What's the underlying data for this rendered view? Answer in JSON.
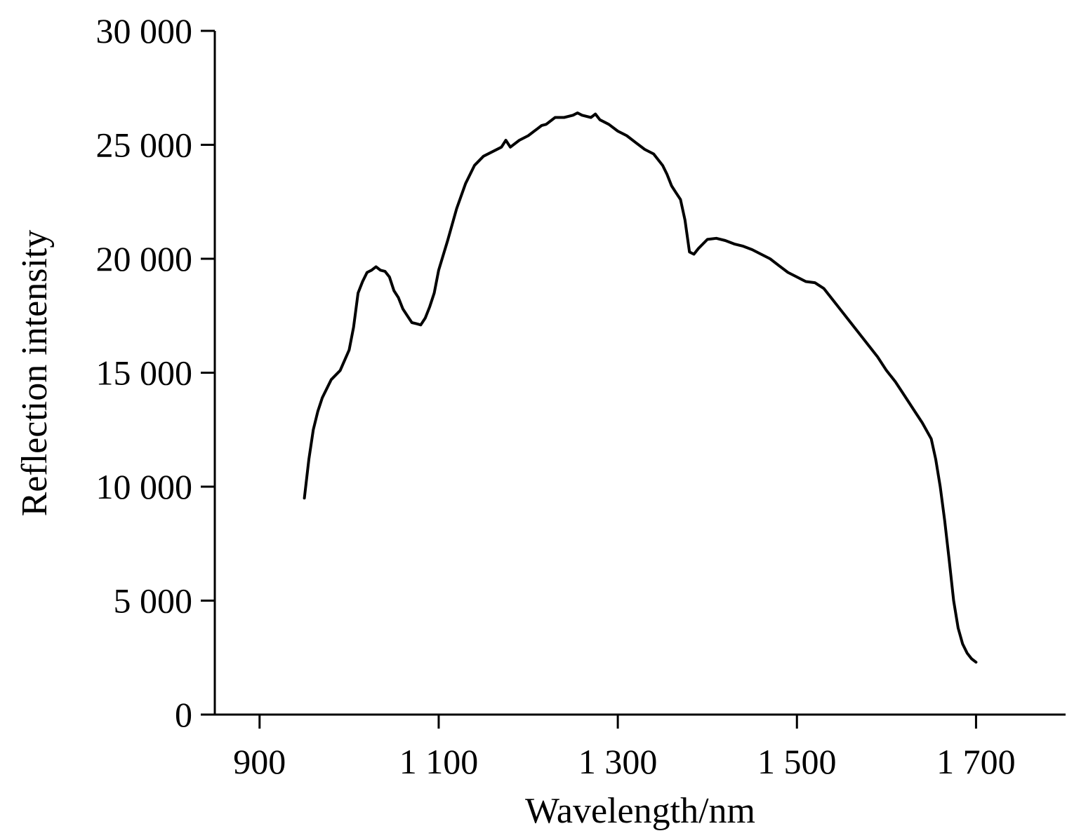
{
  "chart_data": {
    "type": "line",
    "title": "",
    "xlabel": "Wavelength/nm",
    "ylabel": "Reflection intensity",
    "xlim": [
      850,
      1800
    ],
    "ylim": [
      0,
      30000
    ],
    "x_ticks": [
      900,
      1100,
      1300,
      1500,
      1700
    ],
    "x_tick_labels": [
      "900",
      "1 100",
      "1 300",
      "1 500",
      "1 700"
    ],
    "y_ticks": [
      0,
      5000,
      10000,
      15000,
      20000,
      25000,
      30000
    ],
    "y_tick_labels": [
      "0",
      "5 000",
      "10 000",
      "15 000",
      "20 000",
      "25 000",
      "30 000"
    ],
    "grid": false,
    "legend": "none",
    "line_color": "#000000",
    "series": [
      {
        "x": [
          950,
          955,
          960,
          965,
          970,
          980,
          990,
          1000,
          1005,
          1010,
          1015,
          1020,
          1025,
          1030,
          1035,
          1040,
          1045,
          1050,
          1055,
          1060,
          1065,
          1070,
          1075,
          1080,
          1085,
          1090,
          1095,
          1100,
          1110,
          1120,
          1130,
          1140,
          1150,
          1160,
          1170,
          1175,
          1180,
          1190,
          1200,
          1210,
          1215,
          1220,
          1230,
          1240,
          1250,
          1255,
          1260,
          1270,
          1275,
          1280,
          1290,
          1300,
          1310,
          1320,
          1330,
          1340,
          1350,
          1355,
          1360,
          1365,
          1370,
          1375,
          1380,
          1385,
          1390,
          1400,
          1410,
          1420,
          1430,
          1440,
          1450,
          1460,
          1470,
          1480,
          1490,
          1500,
          1510,
          1520,
          1530,
          1540,
          1550,
          1560,
          1570,
          1580,
          1590,
          1600,
          1610,
          1620,
          1630,
          1640,
          1650,
          1655,
          1660,
          1665,
          1670,
          1675,
          1680,
          1685,
          1690,
          1695,
          1700
        ],
        "y": [
          9500,
          11200,
          12500,
          13300,
          13900,
          14700,
          15100,
          16000,
          17000,
          18500,
          19000,
          19400,
          19500,
          19650,
          19500,
          19450,
          19200,
          18600,
          18300,
          17800,
          17500,
          17200,
          17150,
          17100,
          17400,
          17900,
          18500,
          19500,
          20800,
          22200,
          23300,
          24100,
          24500,
          24700,
          24900,
          25200,
          24900,
          25200,
          25400,
          25700,
          25850,
          25900,
          26200,
          26200,
          26300,
          26400,
          26300,
          26200,
          26350,
          26100,
          25900,
          25600,
          25400,
          25100,
          24800,
          24600,
          24100,
          23700,
          23200,
          22900,
          22600,
          21700,
          20300,
          20200,
          20450,
          20850,
          20900,
          20800,
          20650,
          20550,
          20400,
          20200,
          20000,
          19700,
          19400,
          19200,
          19000,
          18950,
          18700,
          18200,
          17700,
          17200,
          16700,
          16200,
          15700,
          15100,
          14600,
          14000,
          13400,
          12800,
          12100,
          11200,
          10000,
          8500,
          6800,
          5000,
          3800,
          3100,
          2700,
          2450,
          2300
        ]
      }
    ]
  }
}
